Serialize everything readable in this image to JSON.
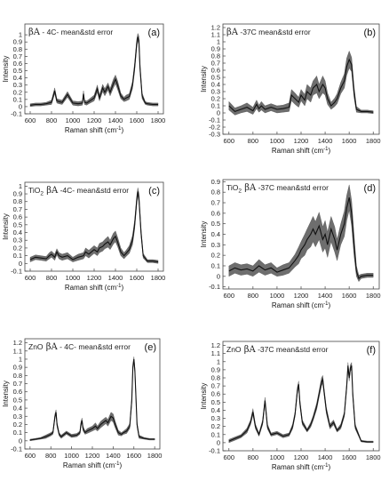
{
  "chart_data": [
    {
      "type": "line",
      "label": "(a)",
      "title_prefix": "",
      "title_greek": "βA",
      "title_rest": " - 4C- mean&std error",
      "xlabel": "Raman shift (cm",
      "xlabel_sup": "-1",
      "xlabel_end": ")",
      "ylabel": "Intensity",
      "xlim": [
        550,
        1850
      ],
      "ylim": [
        -0.1,
        1.15
      ],
      "xticks": [
        600,
        800,
        1000,
        1200,
        1400,
        1600,
        1800
      ],
      "yticks": [
        -0.1,
        0,
        0.1,
        0.2,
        0.3,
        0.4,
        0.5,
        0.6,
        0.7,
        0.8,
        0.9,
        1
      ],
      "x": [
        600,
        650,
        700,
        750,
        800,
        830,
        850,
        870,
        900,
        950,
        1000,
        1050,
        1090,
        1100,
        1110,
        1130,
        1150,
        1200,
        1230,
        1250,
        1280,
        1300,
        1330,
        1350,
        1380,
        1400,
        1420,
        1450,
        1480,
        1500,
        1530,
        1560,
        1580,
        1600,
        1610,
        1620,
        1630,
        1650,
        1680,
        1700,
        1750,
        1800
      ],
      "mean": [
        0.02,
        0.03,
        0.03,
        0.04,
        0.06,
        0.22,
        0.08,
        0.07,
        0.06,
        0.17,
        0.05,
        0.04,
        0.05,
        0.18,
        0.06,
        0.05,
        0.07,
        0.12,
        0.25,
        0.12,
        0.26,
        0.2,
        0.28,
        0.2,
        0.32,
        0.38,
        0.3,
        0.15,
        0.1,
        0.12,
        0.14,
        0.3,
        0.55,
        0.88,
        0.97,
        0.92,
        0.55,
        0.15,
        0.05,
        0.04,
        0.03,
        0.03
      ],
      "err": [
        0.02,
        0.02,
        0.02,
        0.02,
        0.03,
        0.04,
        0.03,
        0.03,
        0.03,
        0.04,
        0.03,
        0.03,
        0.03,
        0.04,
        0.03,
        0.03,
        0.03,
        0.04,
        0.05,
        0.04,
        0.05,
        0.05,
        0.05,
        0.05,
        0.06,
        0.06,
        0.06,
        0.04,
        0.03,
        0.04,
        0.04,
        0.05,
        0.06,
        0.06,
        0.05,
        0.06,
        0.06,
        0.04,
        0.02,
        0.02,
        0.02,
        0.02
      ]
    },
    {
      "type": "line",
      "label": "(b)",
      "title_prefix": "",
      "title_greek": "βA",
      "title_rest": " -37C mean&std error",
      "xlabel": "Raman shift (cm",
      "xlabel_sup": "-1",
      "xlabel_end": ")",
      "ylabel": "Intensity",
      "xlim": [
        550,
        1850
      ],
      "ylim": [
        -0.3,
        1.25
      ],
      "xticks": [
        600,
        800,
        1000,
        1200,
        1400,
        1600,
        1800
      ],
      "yticks": [
        -0.3,
        -0.2,
        -0.1,
        0,
        0.1,
        0.2,
        0.3,
        0.4,
        0.5,
        0.6,
        0.7,
        0.8,
        0.9,
        1,
        1.1,
        1.2
      ],
      "x": [
        600,
        650,
        700,
        750,
        800,
        830,
        850,
        870,
        900,
        950,
        1000,
        1050,
        1100,
        1120,
        1150,
        1180,
        1200,
        1230,
        1250,
        1280,
        1300,
        1330,
        1350,
        1380,
        1400,
        1420,
        1450,
        1480,
        1500,
        1530,
        1560,
        1580,
        1600,
        1620,
        1640,
        1660,
        1700,
        1750,
        1800
      ],
      "mean": [
        0.1,
        0.02,
        0.05,
        0.08,
        0.03,
        0.12,
        0.06,
        0.1,
        0.05,
        0.08,
        0.05,
        0.06,
        0.08,
        0.25,
        0.2,
        0.15,
        0.25,
        0.18,
        0.3,
        0.25,
        0.35,
        0.4,
        0.3,
        0.4,
        0.35,
        0.2,
        0.1,
        0.15,
        0.2,
        0.35,
        0.45,
        0.65,
        0.75,
        0.68,
        0.3,
        0.05,
        0.02,
        0.02,
        0.01
      ],
      "err": [
        0.06,
        0.05,
        0.05,
        0.06,
        0.05,
        0.06,
        0.05,
        0.06,
        0.05,
        0.05,
        0.05,
        0.05,
        0.06,
        0.08,
        0.08,
        0.07,
        0.08,
        0.08,
        0.1,
        0.1,
        0.1,
        0.12,
        0.1,
        0.12,
        0.1,
        0.08,
        0.05,
        0.06,
        0.07,
        0.08,
        0.1,
        0.12,
        0.12,
        0.1,
        0.08,
        0.04,
        0.02,
        0.02,
        0.02
      ]
    },
    {
      "type": "line",
      "label": "(c)",
      "title_prefix": "TiO",
      "title_sub": "2",
      "title_greek": " βA",
      "title_rest": " -4C- mean&std error",
      "xlabel": "Raman shift (cm",
      "xlabel_sup": "-1",
      "xlabel_end": ")",
      "ylabel": "Intensity",
      "xlim": [
        550,
        1850
      ],
      "ylim": [
        -0.1,
        1.05
      ],
      "xticks": [
        600,
        800,
        1000,
        1200,
        1400,
        1600,
        1800
      ],
      "yticks": [
        -0.1,
        0,
        0.1,
        0.2,
        0.3,
        0.4,
        0.5,
        0.6,
        0.7,
        0.8,
        0.9,
        1
      ],
      "x": [
        600,
        650,
        700,
        750,
        780,
        800,
        830,
        850,
        870,
        900,
        950,
        1000,
        1050,
        1100,
        1120,
        1150,
        1200,
        1230,
        1250,
        1280,
        1300,
        1330,
        1350,
        1380,
        1400,
        1420,
        1450,
        1480,
        1500,
        1530,
        1560,
        1580,
        1600,
        1610,
        1620,
        1640,
        1660,
        1700,
        1750,
        1800
      ],
      "mean": [
        0.05,
        0.08,
        0.07,
        0.06,
        0.1,
        0.12,
        0.08,
        0.15,
        0.1,
        0.08,
        0.1,
        0.05,
        0.08,
        0.1,
        0.15,
        0.12,
        0.18,
        0.15,
        0.2,
        0.22,
        0.25,
        0.28,
        0.24,
        0.32,
        0.35,
        0.28,
        0.15,
        0.1,
        0.13,
        0.18,
        0.3,
        0.5,
        0.82,
        0.93,
        0.85,
        0.4,
        0.1,
        0.03,
        0.03,
        0.02
      ],
      "err": [
        0.03,
        0.03,
        0.03,
        0.03,
        0.04,
        0.04,
        0.04,
        0.04,
        0.04,
        0.04,
        0.04,
        0.03,
        0.04,
        0.04,
        0.05,
        0.05,
        0.05,
        0.05,
        0.06,
        0.06,
        0.06,
        0.07,
        0.06,
        0.07,
        0.07,
        0.06,
        0.05,
        0.04,
        0.04,
        0.05,
        0.06,
        0.06,
        0.06,
        0.05,
        0.06,
        0.05,
        0.03,
        0.02,
        0.02,
        0.02
      ]
    },
    {
      "type": "line",
      "label": "(d)",
      "title_prefix": "TiO",
      "title_sub": "2",
      "title_greek": " βA",
      "title_rest": " -37C mean&std error",
      "xlabel": "Raman shift (cm",
      "xlabel_sup": "-1",
      "xlabel_end": ")",
      "ylabel": "Intensity",
      "xlim": [
        550,
        1850
      ],
      "ylim": [
        -0.12,
        0.92
      ],
      "xticks": [
        600,
        800,
        1000,
        1200,
        1400,
        1600,
        1800
      ],
      "yticks": [
        -0.1,
        0,
        0.1,
        0.2,
        0.3,
        0.4,
        0.5,
        0.6,
        0.7,
        0.8,
        0.9
      ],
      "x": [
        600,
        650,
        700,
        750,
        800,
        850,
        900,
        950,
        1000,
        1050,
        1100,
        1150,
        1180,
        1200,
        1230,
        1250,
        1280,
        1300,
        1320,
        1350,
        1380,
        1400,
        1420,
        1450,
        1480,
        1500,
        1530,
        1560,
        1580,
        1600,
        1620,
        1640,
        1660,
        1680,
        1700,
        1750,
        1800
      ],
      "mean": [
        0.05,
        0.08,
        0.06,
        0.07,
        0.05,
        0.1,
        0.06,
        0.08,
        0.04,
        0.06,
        0.08,
        0.15,
        0.2,
        0.25,
        0.3,
        0.35,
        0.4,
        0.45,
        0.4,
        0.48,
        0.35,
        0.4,
        0.3,
        0.45,
        0.35,
        0.25,
        0.4,
        0.5,
        0.65,
        0.75,
        0.6,
        0.3,
        0.05,
        -0.02,
        0.0,
        0.01,
        0.01
      ],
      "err": [
        0.05,
        0.05,
        0.05,
        0.05,
        0.05,
        0.06,
        0.05,
        0.05,
        0.04,
        0.05,
        0.05,
        0.06,
        0.08,
        0.08,
        0.1,
        0.1,
        0.12,
        0.12,
        0.12,
        0.13,
        0.12,
        0.13,
        0.12,
        0.12,
        0.12,
        0.1,
        0.1,
        0.12,
        0.12,
        0.12,
        0.12,
        0.1,
        0.05,
        0.03,
        0.02,
        0.02,
        0.02
      ]
    },
    {
      "type": "line",
      "label": "(e)",
      "title_prefix": "ZnO",
      "title_greek": " βA",
      "title_rest": " - 4C- mean&std error",
      "xlabel": "Raman shift (cm",
      "xlabel_sup": "-1",
      "xlabel_end": ")",
      "ylabel": "Intensity",
      "xlim": [
        550,
        1850
      ],
      "ylim": [
        -0.1,
        1.25
      ],
      "xticks": [
        600,
        800,
        1000,
        1200,
        1400,
        1600,
        1800
      ],
      "yticks": [
        -0.1,
        0,
        0.1,
        0.2,
        0.3,
        0.4,
        0.5,
        0.6,
        0.7,
        0.8,
        0.9,
        1,
        1.1,
        1.2
      ],
      "x": [
        600,
        650,
        700,
        750,
        800,
        820,
        840,
        850,
        860,
        880,
        900,
        950,
        1000,
        1050,
        1080,
        1090,
        1100,
        1110,
        1130,
        1150,
        1200,
        1230,
        1250,
        1280,
        1300,
        1330,
        1350,
        1380,
        1400,
        1420,
        1450,
        1480,
        1500,
        1530,
        1560,
        1580,
        1590,
        1600,
        1610,
        1630,
        1650,
        1700,
        1750,
        1800
      ],
      "mean": [
        0.01,
        0.02,
        0.03,
        0.05,
        0.08,
        0.1,
        0.3,
        0.35,
        0.2,
        0.08,
        0.05,
        0.1,
        0.06,
        0.07,
        0.1,
        0.2,
        0.25,
        0.15,
        0.1,
        0.12,
        0.15,
        0.18,
        0.15,
        0.2,
        0.22,
        0.25,
        0.22,
        0.3,
        0.28,
        0.2,
        0.1,
        0.08,
        0.1,
        0.12,
        0.18,
        0.5,
        0.9,
        1.0,
        0.85,
        0.2,
        0.05,
        0.03,
        0.02,
        0.02
      ],
      "err": [
        0.01,
        0.01,
        0.01,
        0.02,
        0.02,
        0.02,
        0.03,
        0.03,
        0.03,
        0.02,
        0.02,
        0.02,
        0.02,
        0.02,
        0.02,
        0.03,
        0.03,
        0.03,
        0.02,
        0.03,
        0.03,
        0.04,
        0.03,
        0.04,
        0.04,
        0.04,
        0.04,
        0.05,
        0.05,
        0.04,
        0.03,
        0.02,
        0.02,
        0.03,
        0.03,
        0.04,
        0.04,
        0.03,
        0.04,
        0.03,
        0.02,
        0.01,
        0.01,
        0.01
      ]
    },
    {
      "type": "line",
      "label": "(f)",
      "title_prefix": "ZnO",
      "title_greek": "  βA",
      "title_rest": " -37C mean&std error",
      "xlabel": "Raman shift (cm",
      "xlabel_sup": "-1",
      "xlabel_end": ")",
      "ylabel": "Intensity",
      "xlim": [
        550,
        1850
      ],
      "ylim": [
        -0.1,
        1.25
      ],
      "xticks": [
        600,
        800,
        1000,
        1200,
        1400,
        1600,
        1800
      ],
      "yticks": [
        -0.1,
        0,
        0.1,
        0.2,
        0.3,
        0.4,
        0.5,
        0.6,
        0.7,
        0.8,
        0.9,
        1,
        1.1,
        1.2
      ],
      "x": [
        600,
        650,
        700,
        750,
        780,
        800,
        820,
        850,
        880,
        900,
        920,
        950,
        1000,
        1050,
        1100,
        1130,
        1150,
        1170,
        1180,
        1190,
        1210,
        1250,
        1280,
        1300,
        1330,
        1350,
        1370,
        1380,
        1390,
        1410,
        1440,
        1470,
        1500,
        1530,
        1560,
        1580,
        1590,
        1600,
        1610,
        1620,
        1630,
        1650,
        1700,
        1750,
        1800
      ],
      "mean": [
        0.02,
        0.05,
        0.08,
        0.15,
        0.25,
        0.38,
        0.2,
        0.1,
        0.25,
        0.52,
        0.2,
        0.1,
        0.12,
        0.08,
        0.1,
        0.2,
        0.35,
        0.65,
        0.72,
        0.5,
        0.25,
        0.15,
        0.22,
        0.3,
        0.45,
        0.6,
        0.75,
        0.78,
        0.65,
        0.4,
        0.2,
        0.25,
        0.15,
        0.2,
        0.35,
        0.7,
        0.95,
        0.8,
        0.92,
        0.95,
        0.6,
        0.2,
        0.02,
        0.01,
        0.01
      ],
      "err": [
        0.02,
        0.02,
        0.02,
        0.03,
        0.03,
        0.04,
        0.03,
        0.02,
        0.03,
        0.04,
        0.03,
        0.02,
        0.02,
        0.02,
        0.02,
        0.03,
        0.03,
        0.04,
        0.04,
        0.04,
        0.03,
        0.02,
        0.03,
        0.03,
        0.04,
        0.04,
        0.05,
        0.05,
        0.04,
        0.04,
        0.03,
        0.03,
        0.02,
        0.03,
        0.03,
        0.04,
        0.04,
        0.04,
        0.04,
        0.04,
        0.04,
        0.03,
        0.01,
        0.01,
        0.01
      ]
    }
  ]
}
